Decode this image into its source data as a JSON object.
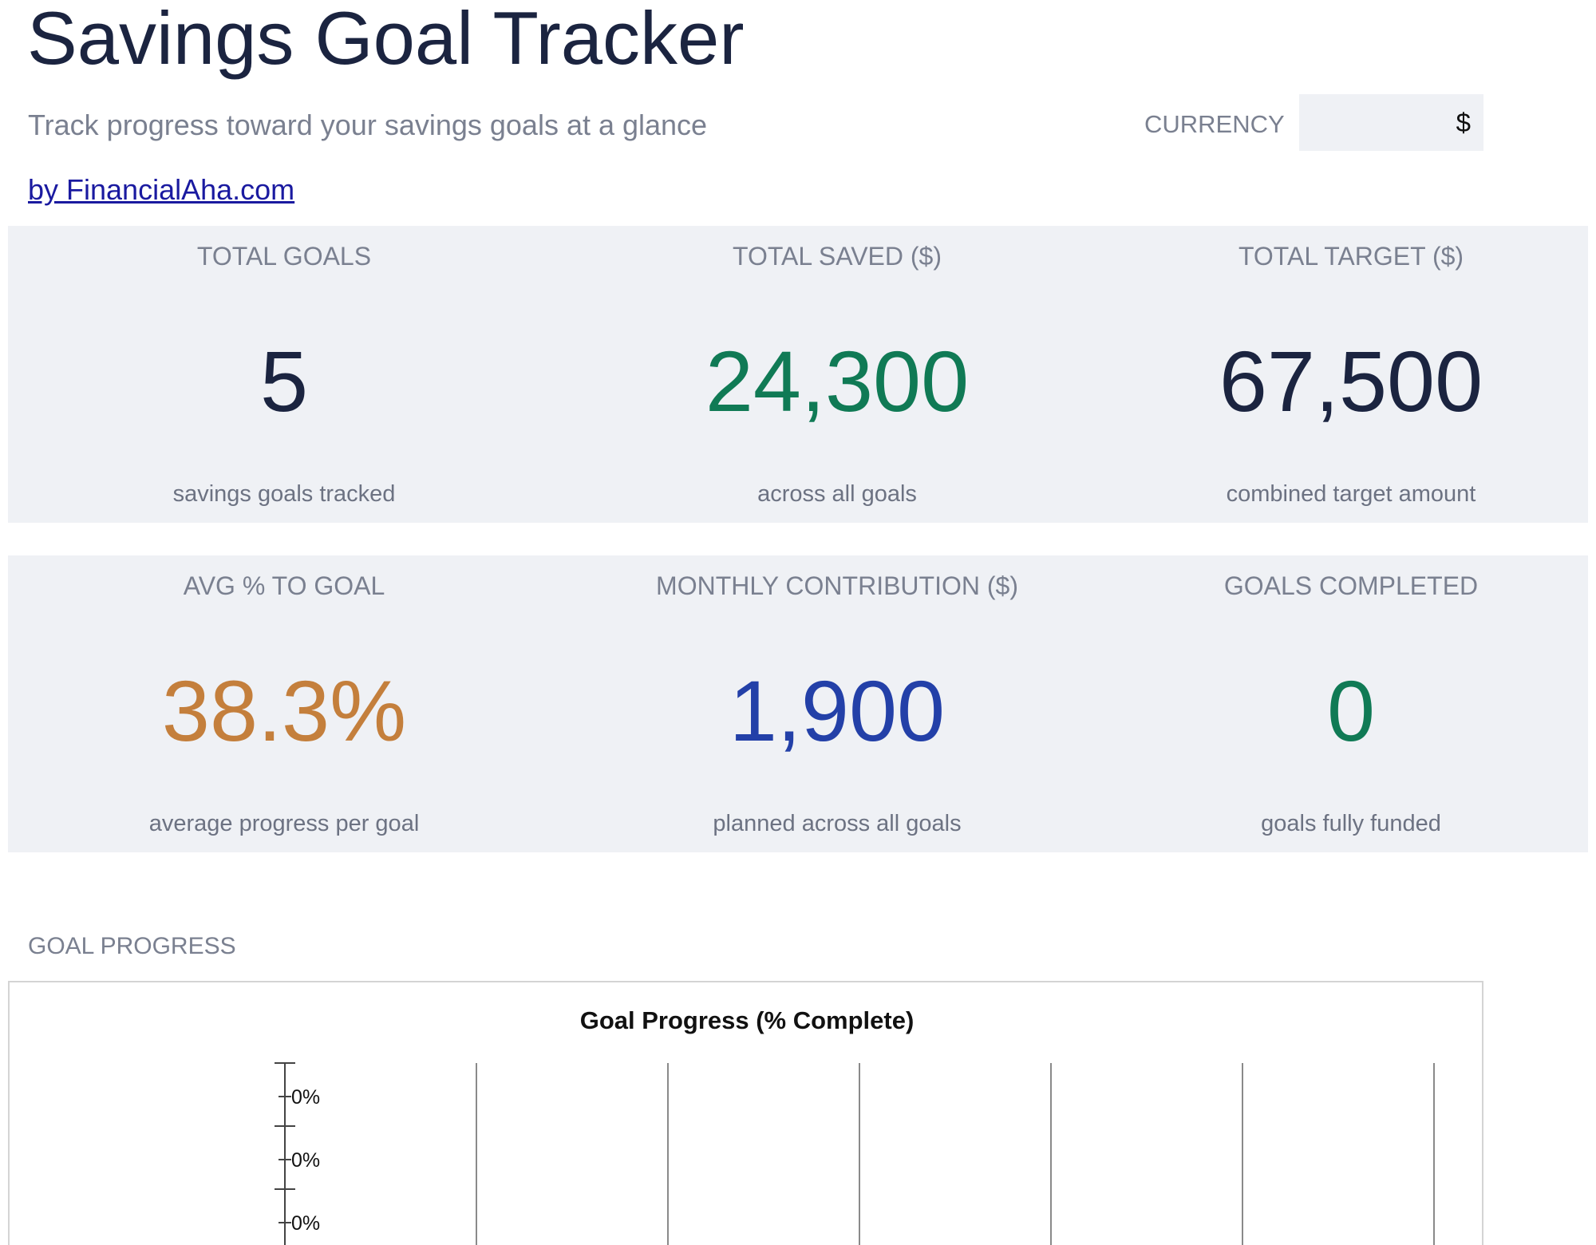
{
  "header": {
    "title": "Savings Goal Tracker",
    "subtitle": "Track progress toward your savings goals at a glance",
    "byline": "by FinancialAha.com",
    "currency_label": "CURRENCY",
    "currency_value": "$"
  },
  "kpis": [
    {
      "label": "TOTAL GOALS",
      "value": "5",
      "sub": "savings goals tracked",
      "color": "#1b2440"
    },
    {
      "label": "TOTAL SAVED ($)",
      "value": "24,300",
      "sub": "across all goals",
      "color": "#107a55"
    },
    {
      "label": "TOTAL TARGET ($)",
      "value": "67,500",
      "sub": "combined target amount",
      "color": "#1b2440"
    },
    {
      "label": "AVG % TO GOAL",
      "value": "38.3%",
      "sub": "average progress per goal",
      "color": "#c47f3c"
    },
    {
      "label": "MONTHLY CONTRIBUTION ($)",
      "value": "1,900",
      "sub": "planned across all goals",
      "color": "#2340a8"
    },
    {
      "label": "GOALS COMPLETED",
      "value": "0",
      "sub": "goals fully funded",
      "color": "#107a55"
    }
  ],
  "section": {
    "goal_progress_label": "GOAL PROGRESS"
  },
  "chart_data": {
    "type": "bar",
    "title": "Goal Progress (% Complete)",
    "tick_labels": [
      "0%",
      "0%",
      "0%"
    ],
    "categories": [],
    "values": [],
    "grid": true
  }
}
